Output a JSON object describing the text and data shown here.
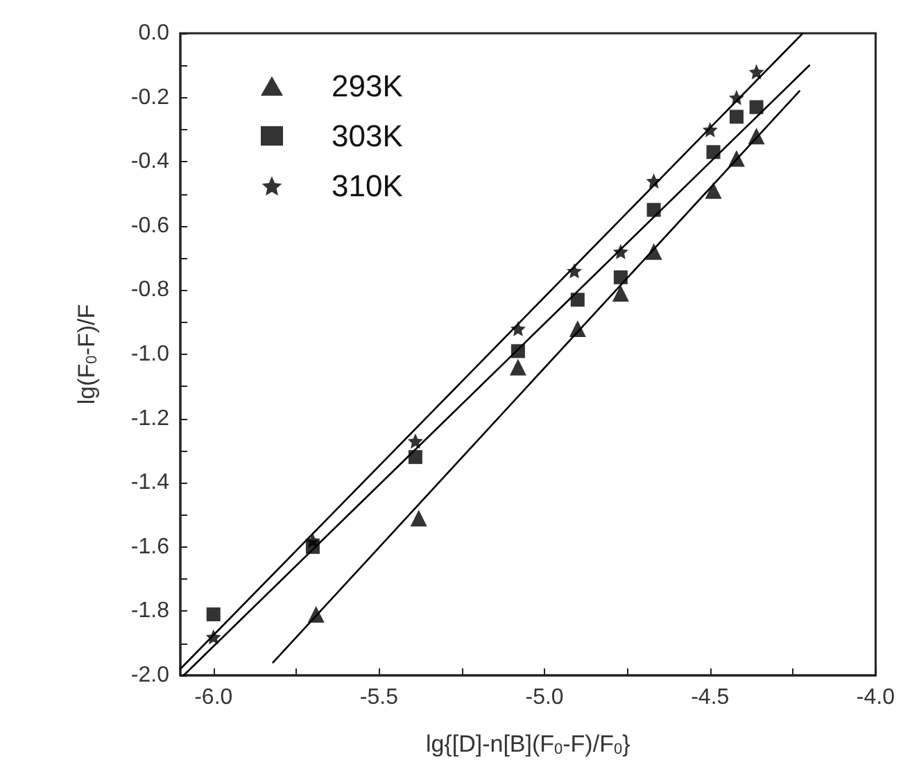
{
  "chart_data": {
    "type": "scatter",
    "xlabel": "lg{[D]-n[B](F$_{0}$-F)/F$_{0}$}",
    "ylabel": "lg(F$_{0}$-F)/F",
    "xlim": [
      -6.1,
      -4.0
    ],
    "ylim": [
      -2.0,
      0.0
    ],
    "xticks": [
      {
        "value": -6.0,
        "label": "-6.0"
      },
      {
        "value": -5.75,
        "label": null
      },
      {
        "value": -5.5,
        "label": "-5.5"
      },
      {
        "value": -5.25,
        "label": null
      },
      {
        "value": -5.0,
        "label": "-5.0"
      },
      {
        "value": -4.75,
        "label": null
      },
      {
        "value": -4.5,
        "label": "-4.5"
      },
      {
        "value": -4.25,
        "label": null
      },
      {
        "value": -4.0,
        "label": "-4.0"
      }
    ],
    "yticks": [
      {
        "value": -2.0,
        "label": "-2.0"
      },
      {
        "value": -1.9,
        "label": null
      },
      {
        "value": -1.8,
        "label": "-1.8"
      },
      {
        "value": -1.7,
        "label": null
      },
      {
        "value": -1.6,
        "label": "-1.6"
      },
      {
        "value": -1.5,
        "label": null
      },
      {
        "value": -1.4,
        "label": "-1.4"
      },
      {
        "value": -1.3,
        "label": null
      },
      {
        "value": -1.2,
        "label": "-1.2"
      },
      {
        "value": -1.1,
        "label": null
      },
      {
        "value": -1.0,
        "label": "-1.0"
      },
      {
        "value": -0.9,
        "label": null
      },
      {
        "value": -0.8,
        "label": "-0.8"
      },
      {
        "value": -0.7,
        "label": null
      },
      {
        "value": -0.6,
        "label": "-0.6"
      },
      {
        "value": -0.5,
        "label": null
      },
      {
        "value": -0.4,
        "label": "-0.4"
      },
      {
        "value": -0.3,
        "label": null
      },
      {
        "value": -0.2,
        "label": "-0.2"
      },
      {
        "value": -0.1,
        "label": null
      },
      {
        "value": 0.0,
        "label": "0.0"
      }
    ],
    "grid": false,
    "legend": "top left",
    "series": [
      {
        "name": "293K",
        "color": "#000000",
        "marker": "triangle",
        "x": [
          -5.69,
          -5.38,
          -5.08,
          -4.9,
          -4.77,
          -4.67,
          -4.49,
          -4.42,
          -4.36
        ],
        "values": [
          -1.81,
          -1.51,
          -1.04,
          -0.92,
          -0.81,
          -0.68,
          -0.49,
          -0.39,
          -0.32
        ]
      },
      {
        "name": "303K",
        "color": "#000000",
        "marker": "square",
        "x": [
          -6.0,
          -5.7,
          -5.39,
          -5.08,
          -4.9,
          -4.77,
          -4.67,
          -4.49,
          -4.42,
          -4.36
        ],
        "values": [
          -1.81,
          -1.6,
          -1.32,
          -0.99,
          -0.83,
          -0.76,
          -0.55,
          -0.37,
          -0.26,
          -0.23
        ]
      },
      {
        "name": "310K",
        "color": "#000000",
        "marker": "star",
        "x": [
          -6.0,
          -5.7,
          -5.39,
          -5.08,
          -4.91,
          -4.77,
          -4.67,
          -4.5,
          -4.42,
          -4.36
        ],
        "values": [
          -1.88,
          -1.58,
          -1.27,
          -0.92,
          -0.74,
          -0.68,
          -0.46,
          -0.3,
          -0.2,
          -0.12
        ]
      },
      {
        "type": "line",
        "color": "#000000",
        "marker": "none",
        "line_style": "solid",
        "x": [
          -5.82,
          -4.23
        ],
        "values": [
          -1.96,
          -0.18
        ]
      },
      {
        "type": "line",
        "color": "#000000",
        "marker": "none",
        "line_style": "solid",
        "x": [
          -6.09,
          -4.2
        ],
        "values": [
          -2.0,
          -0.1
        ]
      },
      {
        "type": "line",
        "color": "#000000",
        "marker": "none",
        "line_style": "solid",
        "x": [
          -6.1,
          -4.22
        ],
        "values": [
          -1.98,
          0.0
        ]
      }
    ]
  }
}
